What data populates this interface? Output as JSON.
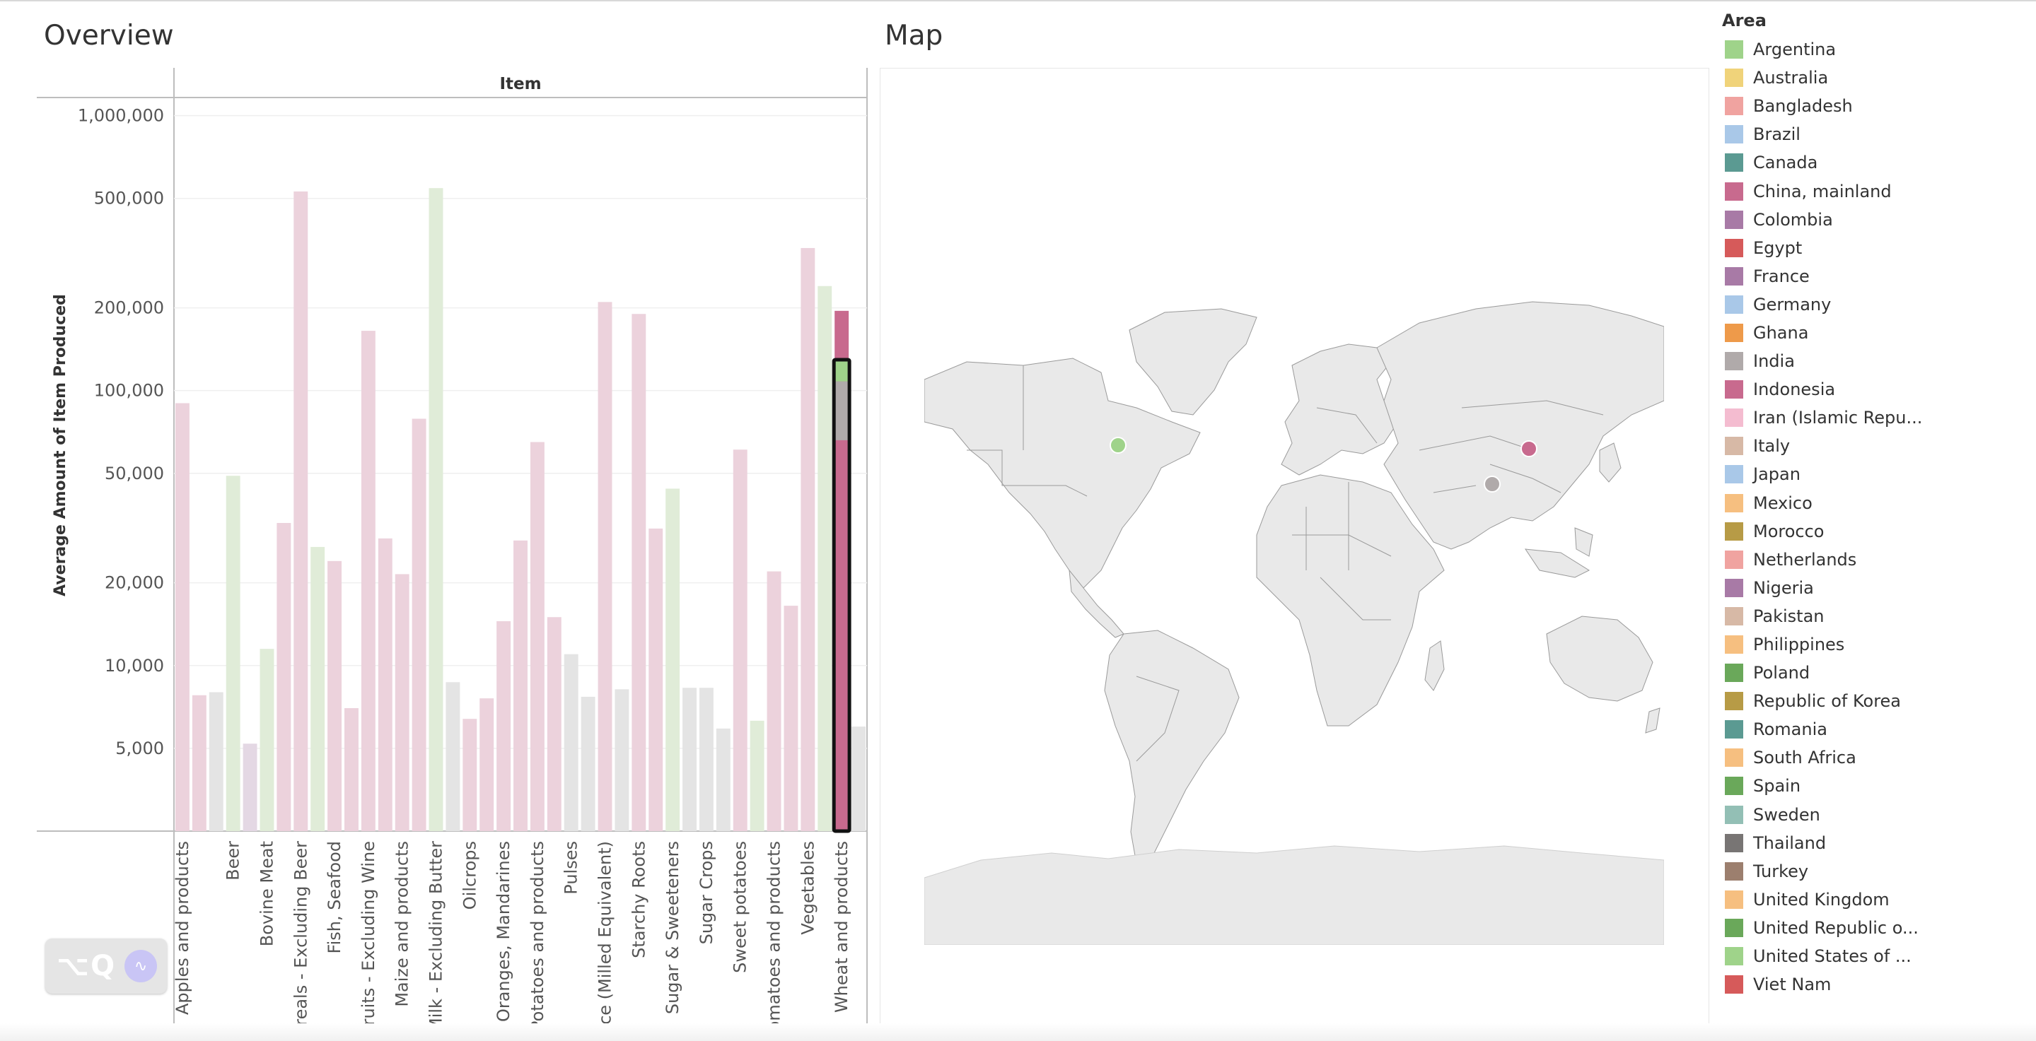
{
  "overview": {
    "title": "Overview"
  },
  "map": {
    "title": "Map",
    "markers": [
      {
        "name": "United States of ...",
        "color": "#9fd38a"
      },
      {
        "name": "China, mainland",
        "color": "#c86a8e"
      },
      {
        "name": "India",
        "color": "#b0aaaa"
      }
    ]
  },
  "chart_data": {
    "type": "bar",
    "column_header": "Item",
    "ylabel": "Average Amount of Item Produced",
    "y_scale": "log",
    "ylim": [
      2500,
      1150000
    ],
    "yticks": [
      5000,
      10000,
      20000,
      50000,
      100000,
      200000,
      500000,
      1000000
    ],
    "ytick_labels": [
      "5,000",
      "10,000",
      "20,000",
      "50,000",
      "100,000",
      "200,000",
      "500,000",
      "1,000,000"
    ],
    "categories": [
      "Apples and products",
      "",
      "",
      "Beer",
      "",
      "Bovine Meat",
      "",
      "Cereals - Excluding Beer",
      "",
      "Fish, Seafood",
      "",
      "Fruits - Excluding Wine",
      "",
      "Maize and products",
      "",
      "Milk - Excluding Butter",
      "",
      "Oilcrops",
      "",
      "Oranges, Mandarines",
      "",
      "Potatoes and products",
      "",
      "Pulses",
      "",
      "Rice (Milled Equivalent)",
      "",
      "Starchy Roots",
      "",
      "Sugar & Sweeteners",
      "",
      "Sugar Crops",
      "",
      "Sweet potatoes",
      "",
      "Tomatoes and products",
      "",
      "Vegetables",
      "",
      "Wheat and products",
      ""
    ],
    "values": [
      90000,
      7800,
      8000,
      49000,
      5200,
      11500,
      33000,
      530000,
      27000,
      24000,
      7000,
      165000,
      29000,
      21500,
      79000,
      545000,
      8700,
      6400,
      7600,
      14500,
      28500,
      65000,
      15000,
      11000,
      7700,
      210000,
      8200,
      190000,
      31500,
      44000,
      8300,
      8300,
      5900,
      61000,
      6300,
      22000,
      16500,
      330000,
      240000,
      195000,
      6000
    ],
    "bar_colors": [
      "#ecd2dc",
      "#ecd2dc",
      "#e4e4e4",
      "#e0ecd8",
      "#e4d8e4",
      "#e0ecd8",
      "#ecd2dc",
      "#ecd2dc",
      "#e0ecd8",
      "#ecd2dc",
      "#ecd2dc",
      "#ecd2dc",
      "#ecd2dc",
      "#ecd2dc",
      "#ecd2dc",
      "#e0ecd8",
      "#e4e4e4",
      "#ecd2dc",
      "#ecd2dc",
      "#ecd2dc",
      "#ecd2dc",
      "#ecd2dc",
      "#ecd2dc",
      "#e4e4e4",
      "#e4e4e4",
      "#ecd2dc",
      "#e4e4e4",
      "#ecd2dc",
      "#ecd2dc",
      "#e0ecd8",
      "#e4e4e4",
      "#e4e4e4",
      "#e4e4e4",
      "#ecd2dc",
      "#e0ecd8",
      "#ecd2dc",
      "#ecd2dc",
      "#ecd2dc",
      "#e0ecd8",
      "#c86a8e",
      "#e4e4e4"
    ],
    "selected_index": 39,
    "selected_segments": [
      {
        "area": "China, mainland",
        "value": 66000,
        "color": "#c86a8e"
      },
      {
        "area": "India",
        "value": 42000,
        "color": "#b0aaaa"
      },
      {
        "area": "United States of ...",
        "value": 20000,
        "color": "#9fd38a"
      }
    ]
  },
  "legend": {
    "title": "Area",
    "items": [
      {
        "label": "Argentina",
        "color": "#9fd38a"
      },
      {
        "label": "Australia",
        "color": "#f0d37a"
      },
      {
        "label": "Bangladesh",
        "color": "#f0a3a0"
      },
      {
        "label": "Brazil",
        "color": "#a9c8e8"
      },
      {
        "label": "Canada",
        "color": "#5b9a92"
      },
      {
        "label": "China, mainland",
        "color": "#c86a8e"
      },
      {
        "label": "Colombia",
        "color": "#a87aa6"
      },
      {
        "label": "Egypt",
        "color": "#d65a5a"
      },
      {
        "label": "France",
        "color": "#a87aa6"
      },
      {
        "label": "Germany",
        "color": "#a9c8e8"
      },
      {
        "label": "Ghana",
        "color": "#ee9a4a"
      },
      {
        "label": "India",
        "color": "#b0aaaa"
      },
      {
        "label": "Indonesia",
        "color": "#c86a8e"
      },
      {
        "label": "Iran (Islamic Repu...",
        "color": "#f4bcd0"
      },
      {
        "label": "Italy",
        "color": "#d7b9a6"
      },
      {
        "label": "Japan",
        "color": "#a9c8e8"
      },
      {
        "label": "Mexico",
        "color": "#f6bf80"
      },
      {
        "label": "Morocco",
        "color": "#b79b46"
      },
      {
        "label": "Netherlands",
        "color": "#f0a3a0"
      },
      {
        "label": "Nigeria",
        "color": "#a87aa6"
      },
      {
        "label": "Pakistan",
        "color": "#d7b9a6"
      },
      {
        "label": "Philippines",
        "color": "#f6bf80"
      },
      {
        "label": "Poland",
        "color": "#6aa85a"
      },
      {
        "label": "Republic of Korea",
        "color": "#b79b46"
      },
      {
        "label": "Romania",
        "color": "#5b9a92"
      },
      {
        "label": "South Africa",
        "color": "#f6bf80"
      },
      {
        "label": "Spain",
        "color": "#6aa85a"
      },
      {
        "label": "Sweden",
        "color": "#93bfb5"
      },
      {
        "label": "Thailand",
        "color": "#787574"
      },
      {
        "label": "Turkey",
        "color": "#9c7f6e"
      },
      {
        "label": "United Kingdom",
        "color": "#f6bf80"
      },
      {
        "label": "United Republic o...",
        "color": "#6aa85a"
      },
      {
        "label": "United States of ...",
        "color": "#9fd38a"
      },
      {
        "label": "Viet Nam",
        "color": "#d65a5a"
      }
    ]
  },
  "logo": {
    "text": "⌥Q",
    "mic_icon": "waveform-icon"
  }
}
